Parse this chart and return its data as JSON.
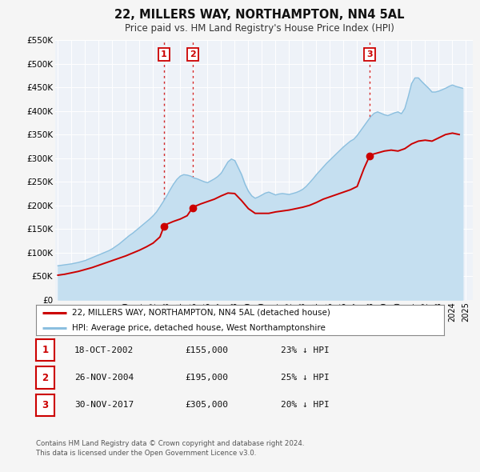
{
  "title": "22, MILLERS WAY, NORTHAMPTON, NN4 5AL",
  "subtitle": "Price paid vs. HM Land Registry's House Price Index (HPI)",
  "hpi_color": "#8bbfdf",
  "hpi_fill_color": "#c5dff0",
  "price_color": "#cc0000",
  "vline_color": "#cc0000",
  "bg_color": "#eef2f8",
  "fig_bg": "#f5f5f5",
  "ylim": [
    0,
    550000
  ],
  "yticks": [
    0,
    50000,
    100000,
    150000,
    200000,
    250000,
    300000,
    350000,
    400000,
    450000,
    500000,
    550000
  ],
  "ytick_labels": [
    "£0",
    "£50K",
    "£100K",
    "£150K",
    "£200K",
    "£250K",
    "£300K",
    "£350K",
    "£400K",
    "£450K",
    "£500K",
    "£550K"
  ],
  "xlim_start": 1994.8,
  "xlim_end": 2025.5,
  "sale_dates": [
    2002.79,
    2004.9,
    2017.92
  ],
  "sale_prices": [
    155000,
    195000,
    305000
  ],
  "sale_labels": [
    "1",
    "2",
    "3"
  ],
  "transactions": [
    {
      "label": "1",
      "date": "18-OCT-2002",
      "price": "£155,000",
      "hpi": "23% ↓ HPI"
    },
    {
      "label": "2",
      "date": "26-NOV-2004",
      "price": "£195,000",
      "hpi": "25% ↓ HPI"
    },
    {
      "label": "3",
      "date": "30-NOV-2017",
      "price": "£305,000",
      "hpi": "20% ↓ HPI"
    }
  ],
  "legend_line1": "22, MILLERS WAY, NORTHAMPTON, NN4 5AL (detached house)",
  "legend_line2": "HPI: Average price, detached house, West Northamptonshire",
  "footer1": "Contains HM Land Registry data © Crown copyright and database right 2024.",
  "footer2": "This data is licensed under the Open Government Licence v3.0.",
  "hpi_data_x": [
    1995.0,
    1995.25,
    1995.5,
    1995.75,
    1996.0,
    1996.25,
    1996.5,
    1996.75,
    1997.0,
    1997.25,
    1997.5,
    1997.75,
    1998.0,
    1998.25,
    1998.5,
    1998.75,
    1999.0,
    1999.25,
    1999.5,
    1999.75,
    2000.0,
    2000.25,
    2000.5,
    2000.75,
    2001.0,
    2001.25,
    2001.5,
    2001.75,
    2002.0,
    2002.25,
    2002.5,
    2002.75,
    2003.0,
    2003.25,
    2003.5,
    2003.75,
    2004.0,
    2004.25,
    2004.5,
    2004.75,
    2005.0,
    2005.25,
    2005.5,
    2005.75,
    2006.0,
    2006.25,
    2006.5,
    2006.75,
    2007.0,
    2007.25,
    2007.5,
    2007.75,
    2008.0,
    2008.25,
    2008.5,
    2008.75,
    2009.0,
    2009.25,
    2009.5,
    2009.75,
    2010.0,
    2010.25,
    2010.5,
    2010.75,
    2011.0,
    2011.25,
    2011.5,
    2011.75,
    2012.0,
    2012.25,
    2012.5,
    2012.75,
    2013.0,
    2013.25,
    2013.5,
    2013.75,
    2014.0,
    2014.25,
    2014.5,
    2014.75,
    2015.0,
    2015.25,
    2015.5,
    2015.75,
    2016.0,
    2016.25,
    2016.5,
    2016.75,
    2017.0,
    2017.25,
    2017.5,
    2017.75,
    2018.0,
    2018.25,
    2018.5,
    2018.75,
    2019.0,
    2019.25,
    2019.5,
    2019.75,
    2020.0,
    2020.25,
    2020.5,
    2020.75,
    2021.0,
    2021.25,
    2021.5,
    2021.75,
    2022.0,
    2022.25,
    2022.5,
    2022.75,
    2023.0,
    2023.25,
    2023.5,
    2023.75,
    2024.0,
    2024.25,
    2024.5,
    2024.75
  ],
  "hpi_data_y": [
    72000,
    73000,
    74000,
    75000,
    76000,
    77500,
    79000,
    81000,
    83000,
    86000,
    89000,
    92000,
    95000,
    98000,
    101000,
    104000,
    108000,
    113000,
    118000,
    124000,
    130000,
    136000,
    141000,
    147000,
    153000,
    159000,
    165000,
    171000,
    178000,
    186000,
    197000,
    208000,
    220000,
    233000,
    245000,
    255000,
    262000,
    265000,
    264000,
    262000,
    258000,
    256000,
    253000,
    250000,
    248000,
    252000,
    256000,
    261000,
    268000,
    280000,
    292000,
    298000,
    295000,
    280000,
    265000,
    245000,
    230000,
    220000,
    215000,
    218000,
    222000,
    226000,
    228000,
    225000,
    222000,
    224000,
    225000,
    224000,
    223000,
    225000,
    227000,
    230000,
    234000,
    240000,
    248000,
    256000,
    265000,
    273000,
    281000,
    289000,
    296000,
    303000,
    310000,
    317000,
    324000,
    330000,
    336000,
    340000,
    348000,
    358000,
    368000,
    378000,
    388000,
    395000,
    398000,
    395000,
    392000,
    390000,
    393000,
    396000,
    398000,
    394000,
    405000,
    430000,
    458000,
    470000,
    470000,
    462000,
    455000,
    448000,
    440000,
    440000,
    442000,
    445000,
    448000,
    452000,
    455000,
    452000,
    450000,
    448000
  ],
  "price_data_x": [
    1995.0,
    1995.5,
    1996.0,
    1996.5,
    1997.0,
    1997.5,
    1998.0,
    1998.5,
    1999.0,
    1999.5,
    2000.0,
    2000.5,
    2001.0,
    2001.5,
    2002.0,
    2002.5,
    2002.79,
    2003.0,
    2003.5,
    2004.0,
    2004.5,
    2004.9,
    2005.0,
    2005.5,
    2006.0,
    2006.5,
    2007.0,
    2007.5,
    2008.0,
    2008.5,
    2009.0,
    2009.5,
    2010.0,
    2010.5,
    2011.0,
    2011.5,
    2012.0,
    2012.5,
    2013.0,
    2013.5,
    2014.0,
    2014.5,
    2015.0,
    2015.5,
    2016.0,
    2016.5,
    2017.0,
    2017.5,
    2017.92,
    2018.0,
    2018.5,
    2019.0,
    2019.5,
    2020.0,
    2020.5,
    2021.0,
    2021.5,
    2022.0,
    2022.5,
    2023.0,
    2023.5,
    2024.0,
    2024.5
  ],
  "price_data_y": [
    52000,
    54000,
    57000,
    60000,
    64000,
    68000,
    73000,
    78000,
    83000,
    88000,
    93000,
    99000,
    105000,
    112000,
    120000,
    133000,
    155000,
    160000,
    166000,
    171000,
    178000,
    195000,
    197000,
    203000,
    208000,
    213000,
    220000,
    226000,
    225000,
    210000,
    193000,
    183000,
    183000,
    183000,
    186000,
    188000,
    190000,
    193000,
    196000,
    200000,
    206000,
    213000,
    218000,
    223000,
    228000,
    233000,
    240000,
    278000,
    305000,
    307000,
    311000,
    315000,
    317000,
    315000,
    320000,
    330000,
    336000,
    338000,
    336000,
    343000,
    350000,
    353000,
    350000
  ]
}
